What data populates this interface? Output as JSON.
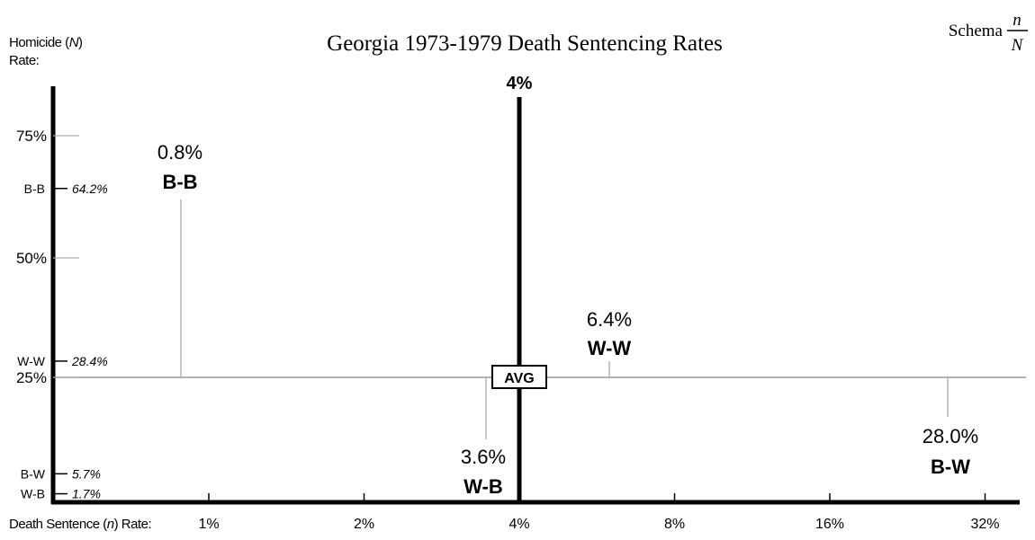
{
  "chart_data": {
    "type": "scatter",
    "title": "Georgia 1973-1979 Death Sentencing Rates",
    "schema": {
      "label": "Schema",
      "numerator": "n",
      "denominator": "N"
    },
    "ylabel_parts": [
      "Homicide (",
      "N",
      ")"
    ],
    "ylabel_line2": "Rate:",
    "xlabel_parts": [
      "Death Sentence (",
      "n",
      ") Rate:"
    ],
    "x_scale": "log2",
    "xlim": [
      0.8,
      36
    ],
    "ylim": [
      0,
      88
    ],
    "x_ticks": [
      {
        "value": 1,
        "label": "1%"
      },
      {
        "value": 2,
        "label": "2%"
      },
      {
        "value": 4,
        "label": "4%"
      },
      {
        "value": 8,
        "label": "8%"
      },
      {
        "value": 16,
        "label": "16%"
      },
      {
        "value": 32,
        "label": "32%"
      }
    ],
    "y_ticks": [
      {
        "value": 75,
        "label": "75%"
      },
      {
        "value": 50,
        "label": "50%"
      },
      {
        "value": 25,
        "label": "25%"
      }
    ],
    "y_markers": [
      {
        "category": "B-B",
        "value": 64.2,
        "label": "64.2%"
      },
      {
        "category": "W-W",
        "value": 28.4,
        "label": "28.4%"
      },
      {
        "category": "B-W",
        "value": 5.7,
        "label": "5.7%"
      },
      {
        "category": "W-B",
        "value": 1.7,
        "label": "1.7%"
      }
    ],
    "average": {
      "x": 4,
      "y": 25,
      "x_label": "4%",
      "box_label": "AVG"
    },
    "points": [
      {
        "category": "B-B",
        "x": 0.8,
        "y": 64.2,
        "label": "0.8%"
      },
      {
        "category": "W-W",
        "x": 6.4,
        "y": 28.4,
        "label": "6.4%"
      },
      {
        "category": "W-B",
        "x": 3.6,
        "y": 1.7,
        "label": "3.6%"
      },
      {
        "category": "B-W",
        "x": 28.0,
        "y": 5.7,
        "label": "28.0%"
      }
    ],
    "colors": {
      "axis": "#000000",
      "stem": "#aaaaaa",
      "text": "#000000"
    }
  }
}
